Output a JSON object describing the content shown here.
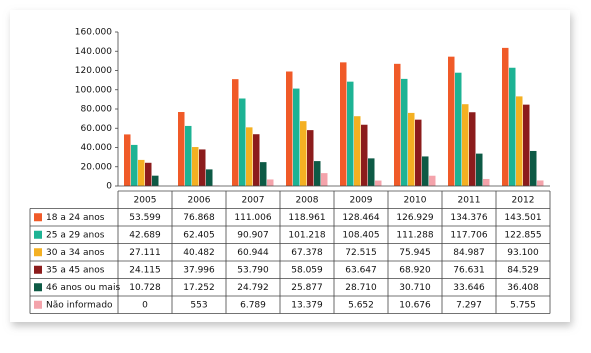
{
  "chart_data": {
    "type": "bar",
    "categories": [
      "2005",
      "2006",
      "2007",
      "2008",
      "2009",
      "2010",
      "2011",
      "2012"
    ],
    "ylim": [
      0,
      160000
    ],
    "yticks": [
      0,
      {
        "value": 20000,
        "label": "20.000"
      },
      {
        "value": 40000,
        "label": "40.000"
      },
      {
        "value": 60000,
        "label": "60.000"
      },
      {
        "value": 80000,
        "label": "80.000"
      },
      {
        "value": 100000,
        "label": "100.000"
      },
      {
        "value": 120000,
        "label": "120.000"
      },
      {
        "value": 140000,
        "label": "140.000"
      },
      {
        "value": 160000,
        "label": "160.000"
      }
    ],
    "grid": false,
    "series": [
      {
        "name": "18 a 24 anos",
        "color": "#f05a28",
        "values": [
          53599,
          76868,
          111006,
          118961,
          128464,
          126929,
          134376,
          143501
        ],
        "value_labels": [
          "53.599",
          "76.868",
          "111.006",
          "118.961",
          "128.464",
          "126.929",
          "134.376",
          "143.501"
        ]
      },
      {
        "name": "25 a 29 anos",
        "color": "#1db394",
        "values": [
          42689,
          62405,
          90907,
          101218,
          108405,
          111288,
          117706,
          122855
        ],
        "value_labels": [
          "42.689",
          "62.405",
          "90.907",
          "101.218",
          "108.405",
          "111.288",
          "117.706",
          "122.855"
        ]
      },
      {
        "name": "30 a 34 anos",
        "color": "#f4b022",
        "values": [
          27111,
          40482,
          60944,
          67378,
          72515,
          75945,
          84987,
          93100
        ],
        "value_labels": [
          "27.111",
          "40.482",
          "60.944",
          "67.378",
          "72.515",
          "75.945",
          "84.987",
          "93.100"
        ]
      },
      {
        "name": "35 a 45 anos",
        "color": "#8c1c1c",
        "values": [
          24115,
          37996,
          53790,
          58059,
          63647,
          68920,
          76631,
          84529
        ],
        "value_labels": [
          "24.115",
          "37.996",
          "53.790",
          "58.059",
          "63.647",
          "68.920",
          "76.631",
          "84.529"
        ]
      },
      {
        "name": "46 anos ou mais",
        "color": "#0d5a45",
        "values": [
          10728,
          17252,
          24792,
          25877,
          28710,
          30710,
          33646,
          36408
        ],
        "value_labels": [
          "10.728",
          "17.252",
          "24.792",
          "25.877",
          "28.710",
          "30.710",
          "33.646",
          "36.408"
        ]
      },
      {
        "name": "Não informado",
        "color": "#f4a3ab",
        "values": [
          0,
          553,
          6789,
          13379,
          5652,
          10676,
          7297,
          5755
        ],
        "value_labels": [
          "0",
          "553",
          "6.789",
          "13.379",
          "5.652",
          "10.676",
          "7.297",
          "5.755"
        ]
      }
    ]
  }
}
